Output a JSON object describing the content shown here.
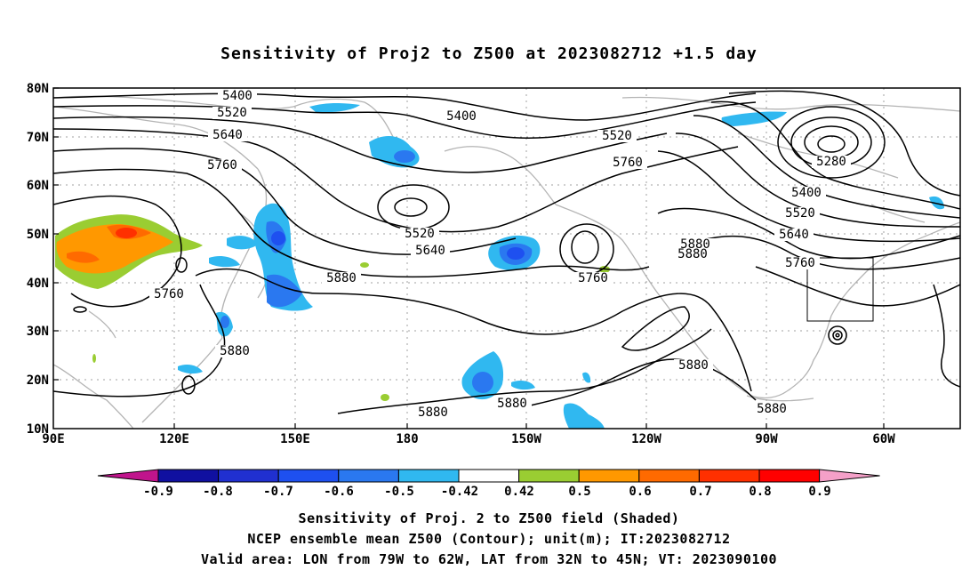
{
  "title": "Sensitivity of Proj2 to Z500 at 2023082712 +1.5 day",
  "map": {
    "lat_labels": [
      "80N",
      "70N",
      "60N",
      "50N",
      "40N",
      "30N",
      "20N",
      "10N"
    ],
    "lon_labels": [
      "90E",
      "120E",
      "150E",
      "180",
      "150W",
      "120W",
      "90W",
      "60W"
    ],
    "valid_area_box": {
      "lon": [
        "79W",
        "62W"
      ],
      "lat": [
        "32N",
        "45N"
      ]
    }
  },
  "contours": {
    "unit": "m",
    "labels": [
      "5400",
      "5520",
      "5640",
      "5760",
      "5400",
      "5520",
      "5760",
      "5280",
      "5400",
      "5520",
      "5640",
      "5760",
      "5520",
      "5640",
      "5880",
      "5760",
      "5880",
      "5880",
      "5760",
      "5880",
      "5880",
      "5880",
      "5880",
      "5880"
    ]
  },
  "colorbar": {
    "tick_labels": [
      "-0.9",
      "-0.8",
      "-0.7",
      "-0.6",
      "-0.5",
      "-0.42",
      "0.42",
      "0.5",
      "0.6",
      "0.7",
      "0.8",
      "0.9"
    ],
    "colors": [
      "#1010a0",
      "#2030d0",
      "#1e50f0",
      "#2a78f0",
      "#30b8f0",
      "#ffffff",
      "#9acd32",
      "#ff9800",
      "#ff6a00",
      "#ff3000",
      "#ff0000"
    ],
    "under_color": "#c0148c",
    "over_color": "#f4a0c8"
  },
  "captions": [
    "Sensitivity of Proj. 2 to Z500 field (Shaded)",
    "NCEP ensemble mean Z500 (Contour); unit(m); IT:2023082712",
    "Valid area: LON from 79W to 62W, LAT from 32N to 45N; VT: 2023090100"
  ]
}
